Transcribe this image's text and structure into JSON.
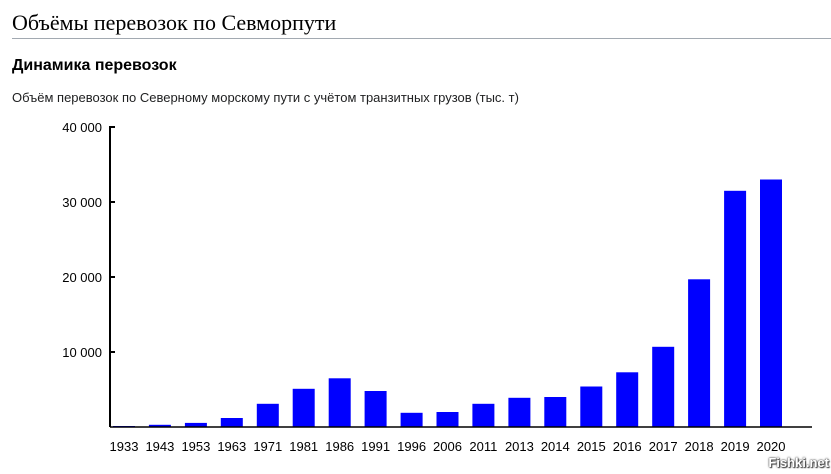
{
  "page": {
    "title": "Объёмы перевозок по Севморпути",
    "section_title": "Динамика перевозок",
    "watermark": "Fishki.net"
  },
  "chart_data": {
    "type": "bar",
    "title": "Объём перевозок по Северному морскому пути с учётом транзитных грузов (тыс. т)",
    "xlabel": "",
    "ylabel": "",
    "ylim": [
      0,
      40000
    ],
    "yticks": [
      10000,
      20000,
      30000,
      40000
    ],
    "ytick_labels": [
      "10 000",
      "20 000",
      "30 000",
      "40 000"
    ],
    "grid": false,
    "bar_color": "#0000ff",
    "categories": [
      "1933",
      "1943",
      "1953",
      "1963",
      "1971",
      "1981",
      "1986",
      "1991",
      "1996",
      "2006",
      "2011",
      "2013",
      "2014",
      "2015",
      "2016",
      "2017",
      "2018",
      "2019",
      "2020"
    ],
    "values": [
      130,
      300,
      550,
      1200,
      3100,
      5100,
      6500,
      4800,
      1900,
      2000,
      3100,
      3900,
      4000,
      5400,
      7300,
      10700,
      19700,
      31500,
      33000
    ]
  }
}
